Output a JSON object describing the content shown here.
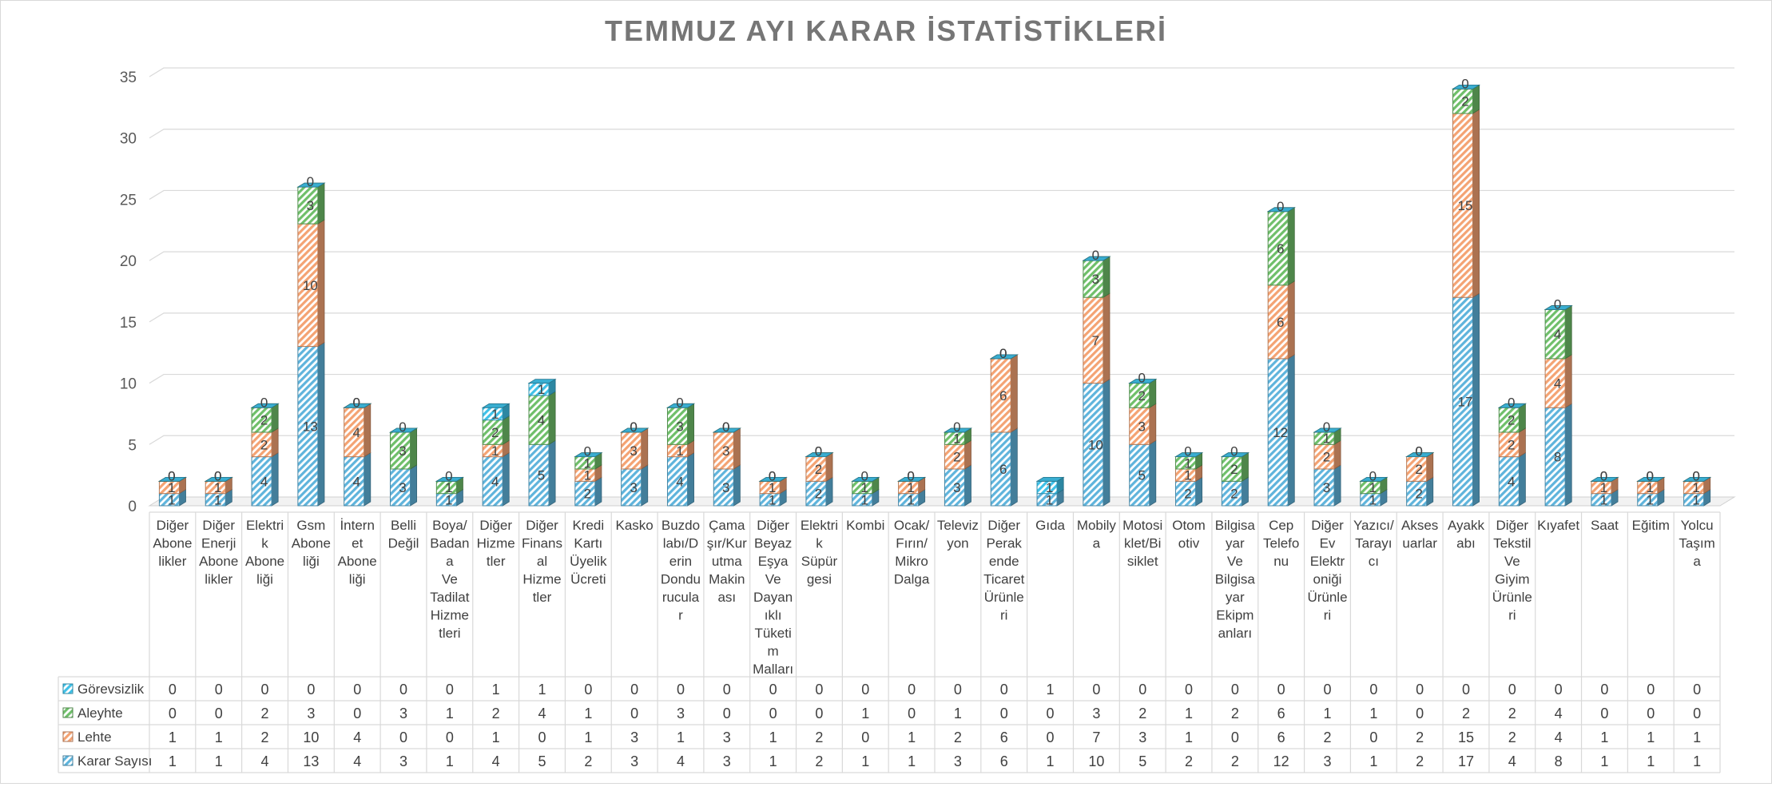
{
  "chart_data": {
    "type": "bar",
    "stacked": true,
    "title": "TEMMUZ AYI KARAR İSTATİSTİKLERİ",
    "xlabel": "",
    "ylabel": "",
    "ylim": [
      0,
      35
    ],
    "yticks": [
      0,
      5,
      10,
      15,
      20,
      25,
      30,
      35
    ],
    "grid": true,
    "legend": "data-table-left",
    "categories": [
      "Diğer Abone likler",
      "Diğer Enerji Abone likler",
      "Elektri k Abone liği",
      "Gsm Abone liği",
      "İntern et Abone liği",
      "Belli Değil",
      "Boya/ Badan a Ve Tadilat Hizme tleri",
      "Diğer Hizme tler",
      "Diğer Finans al Hizme tler",
      "Kredi Kartı Üyelik Ücreti",
      "Kasko",
      "Buzdo labı/D erin Dondu rucula r",
      "Çama şır/Kur utma Makin ası",
      "Diğer Beyaz Eşya Ve Dayan ıklı Tüketi m Malları",
      "Elektri k Süpür gesi",
      "Kombi",
      "Ocak/ Fırın/ Mikro Dalga",
      "Televiz yon",
      "Diğer Perak ende Ticaret Ürünle ri",
      "Gıda",
      "Mobily a",
      "Motosi klet/Bi siklet",
      "Otom otiv",
      "Bilgisa yar Ve Bilgisa yar Ekipm anları",
      "Cep Telefo nu",
      "Diğer Ev Elektr oniği Ürünle ri",
      "Yazıcı/ Tarayı cı",
      "Akses uarlar",
      "Ayakk abı",
      "Diğer Tekstil Ve Giyim Ürünle ri",
      "Kıyafet",
      "Saat",
      "Eğitim",
      "Yolcu Taşım a"
    ],
    "series": [
      {
        "name": "Karar Sayısı",
        "color": "#5fb4dc",
        "values": [
          1,
          1,
          4,
          13,
          4,
          3,
          1,
          4,
          5,
          2,
          3,
          4,
          3,
          1,
          2,
          1,
          1,
          3,
          6,
          1,
          10,
          5,
          2,
          2,
          12,
          3,
          1,
          2,
          17,
          4,
          8,
          1,
          1,
          1
        ]
      },
      {
        "name": "Lehte",
        "color": "#f4a373",
        "values": [
          1,
          1,
          2,
          10,
          4,
          0,
          0,
          1,
          0,
          1,
          3,
          1,
          3,
          1,
          2,
          0,
          1,
          2,
          6,
          0,
          7,
          3,
          1,
          0,
          6,
          2,
          0,
          2,
          15,
          2,
          4,
          1,
          1,
          1
        ]
      },
      {
        "name": "Aleyhte",
        "color": "#6fbf6a",
        "values": [
          0,
          0,
          2,
          3,
          0,
          3,
          1,
          2,
          4,
          1,
          0,
          3,
          0,
          0,
          0,
          1,
          0,
          1,
          0,
          0,
          3,
          2,
          1,
          2,
          6,
          1,
          1,
          0,
          2,
          2,
          4,
          0,
          0,
          0
        ]
      },
      {
        "name": "Görevsizlik",
        "color": "#3fc1e8",
        "values": [
          0,
          0,
          0,
          0,
          0,
          0,
          0,
          1,
          1,
          0,
          0,
          0,
          0,
          0,
          0,
          0,
          0,
          0,
          0,
          1,
          0,
          0,
          0,
          0,
          0,
          0,
          0,
          0,
          0,
          0,
          0,
          0,
          0,
          0
        ]
      }
    ]
  }
}
